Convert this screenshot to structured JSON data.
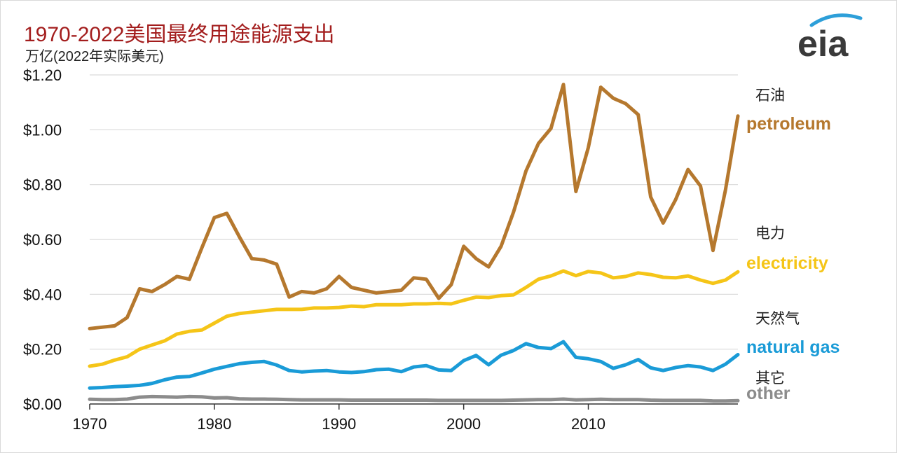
{
  "title": "1970-2022美国最终用途能源支出",
  "subtitle": "万亿(2022年实际美元)",
  "logo_text": "eia",
  "colors": {
    "petroleum": "#b5782e",
    "electricity": "#f5c518",
    "natural_gas": "#1a9bd7",
    "other": "#8c8c8c",
    "title": "#a31d1d",
    "grid": "#d9d9d9",
    "logo_arc": "#2d9fd9"
  },
  "chart_data": {
    "type": "line",
    "title": "1970-2022美国最终用途能源支出",
    "ylabel": "万亿(2022年实际美元)",
    "xlabel": "",
    "xlim": [
      1970,
      2022
    ],
    "ylim": [
      0,
      1.2
    ],
    "grid": "horizontal",
    "yticks": [
      "$0.00",
      "$0.20",
      "$0.40",
      "$0.60",
      "$0.80",
      "$1.00",
      "$1.20"
    ],
    "xticks": [
      "1970",
      "1980",
      "1990",
      "2000",
      "2010"
    ],
    "x": [
      1970,
      1971,
      1972,
      1973,
      1974,
      1975,
      1976,
      1977,
      1978,
      1979,
      1980,
      1981,
      1982,
      1983,
      1984,
      1985,
      1986,
      1987,
      1988,
      1989,
      1990,
      1991,
      1992,
      1993,
      1994,
      1995,
      1996,
      1997,
      1998,
      1999,
      2000,
      2001,
      2002,
      2003,
      2004,
      2005,
      2006,
      2007,
      2008,
      2009,
      2010,
      2011,
      2012,
      2013,
      2014,
      2015,
      2016,
      2017,
      2018,
      2019,
      2020,
      2021,
      2022
    ],
    "series": [
      {
        "name": "petroleum",
        "name_cn": "石油",
        "color": "#b5782e",
        "values": [
          0.275,
          0.28,
          0.285,
          0.315,
          0.42,
          0.41,
          0.435,
          0.465,
          0.455,
          0.57,
          0.68,
          0.695,
          0.61,
          0.53,
          0.525,
          0.51,
          0.39,
          0.41,
          0.405,
          0.42,
          0.465,
          0.425,
          0.415,
          0.405,
          0.41,
          0.415,
          0.46,
          0.455,
          0.385,
          0.435,
          0.575,
          0.53,
          0.5,
          0.575,
          0.7,
          0.85,
          0.95,
          1.005,
          1.165,
          0.775,
          0.935,
          1.155,
          1.115,
          1.095,
          1.055,
          0.755,
          0.66,
          0.745,
          0.855,
          0.795,
          0.56,
          0.78,
          1.05
        ]
      },
      {
        "name": "electricity",
        "name_cn": "电力",
        "color": "#f5c518",
        "values": [
          0.138,
          0.145,
          0.16,
          0.172,
          0.2,
          0.215,
          0.23,
          0.255,
          0.265,
          0.27,
          0.295,
          0.32,
          0.33,
          0.335,
          0.34,
          0.345,
          0.345,
          0.345,
          0.35,
          0.35,
          0.352,
          0.357,
          0.355,
          0.362,
          0.362,
          0.362,
          0.365,
          0.365,
          0.367,
          0.365,
          0.378,
          0.39,
          0.388,
          0.395,
          0.398,
          0.425,
          0.455,
          0.467,
          0.485,
          0.468,
          0.483,
          0.478,
          0.46,
          0.465,
          0.478,
          0.472,
          0.462,
          0.46,
          0.467,
          0.452,
          0.44,
          0.452,
          0.482
        ]
      },
      {
        "name": "natural gas",
        "name_cn": "天然气",
        "color": "#1a9bd7",
        "values": [
          0.058,
          0.06,
          0.063,
          0.065,
          0.068,
          0.075,
          0.088,
          0.098,
          0.1,
          0.113,
          0.127,
          0.137,
          0.147,
          0.152,
          0.155,
          0.142,
          0.122,
          0.117,
          0.12,
          0.122,
          0.117,
          0.115,
          0.118,
          0.125,
          0.127,
          0.118,
          0.135,
          0.14,
          0.124,
          0.122,
          0.158,
          0.177,
          0.143,
          0.178,
          0.195,
          0.22,
          0.206,
          0.202,
          0.227,
          0.17,
          0.165,
          0.155,
          0.13,
          0.143,
          0.162,
          0.132,
          0.122,
          0.133,
          0.14,
          0.135,
          0.122,
          0.145,
          0.18
        ]
      },
      {
        "name": "other",
        "name_cn": "其它",
        "color": "#8c8c8c",
        "values": [
          0.017,
          0.016,
          0.016,
          0.018,
          0.025,
          0.027,
          0.026,
          0.025,
          0.027,
          0.026,
          0.022,
          0.023,
          0.019,
          0.018,
          0.018,
          0.017,
          0.016,
          0.015,
          0.015,
          0.015,
          0.015,
          0.014,
          0.014,
          0.014,
          0.014,
          0.014,
          0.014,
          0.014,
          0.013,
          0.013,
          0.013,
          0.013,
          0.013,
          0.013,
          0.014,
          0.015,
          0.016,
          0.016,
          0.018,
          0.015,
          0.016,
          0.017,
          0.016,
          0.016,
          0.016,
          0.014,
          0.013,
          0.013,
          0.013,
          0.013,
          0.011,
          0.011,
          0.012
        ]
      }
    ]
  },
  "labels": [
    {
      "cn": "石油",
      "en": "petroleum",
      "color": "#b5782e"
    },
    {
      "cn": "电力",
      "en": "electricity",
      "color": "#f5c518"
    },
    {
      "cn": "天然气",
      "en": "natural gas",
      "color": "#1a9bd7"
    },
    {
      "cn": "其它",
      "en": "other",
      "color": "#8c8c8c"
    }
  ]
}
